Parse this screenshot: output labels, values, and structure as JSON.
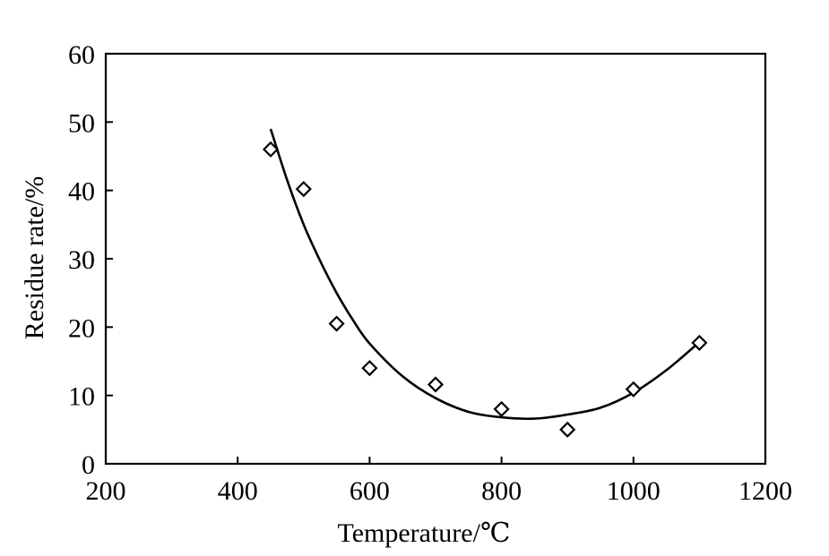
{
  "chart_data": {
    "type": "scatter",
    "xlabel": "Temperature/℃",
    "ylabel": "Residue rate/%",
    "xlim": [
      200,
      1200
    ],
    "ylim": [
      0,
      60
    ],
    "x_ticks": [
      200,
      400,
      600,
      800,
      1000,
      1200
    ],
    "y_ticks": [
      0,
      10,
      20,
      30,
      40,
      50,
      60
    ],
    "x_tick_labels": [
      "200",
      "400",
      "600",
      "800",
      "1000",
      "1200"
    ],
    "y_tick_labels": [
      "0",
      "10",
      "20",
      "30",
      "40",
      "50",
      "60"
    ],
    "grid": false,
    "marker": "diamond-open",
    "series": [
      {
        "x": [
          450,
          500,
          550,
          600,
          700,
          800,
          900,
          1000,
          1100
        ],
        "y": [
          46,
          40.2,
          20.5,
          14,
          11.6,
          8,
          5,
          10.9,
          17.7
        ]
      }
    ],
    "fit_curve": {
      "x": [
        450,
        475,
        500,
        525,
        550,
        575,
        600,
        650,
        700,
        750,
        800,
        850,
        900,
        950,
        1000,
        1050,
        1100
      ],
      "y": [
        49,
        41.5,
        35,
        29.7,
        25,
        21,
        17.6,
        12.8,
        9.6,
        7.6,
        6.8,
        6.6,
        7.2,
        8.2,
        10.4,
        13.7,
        17.8
      ]
    }
  }
}
